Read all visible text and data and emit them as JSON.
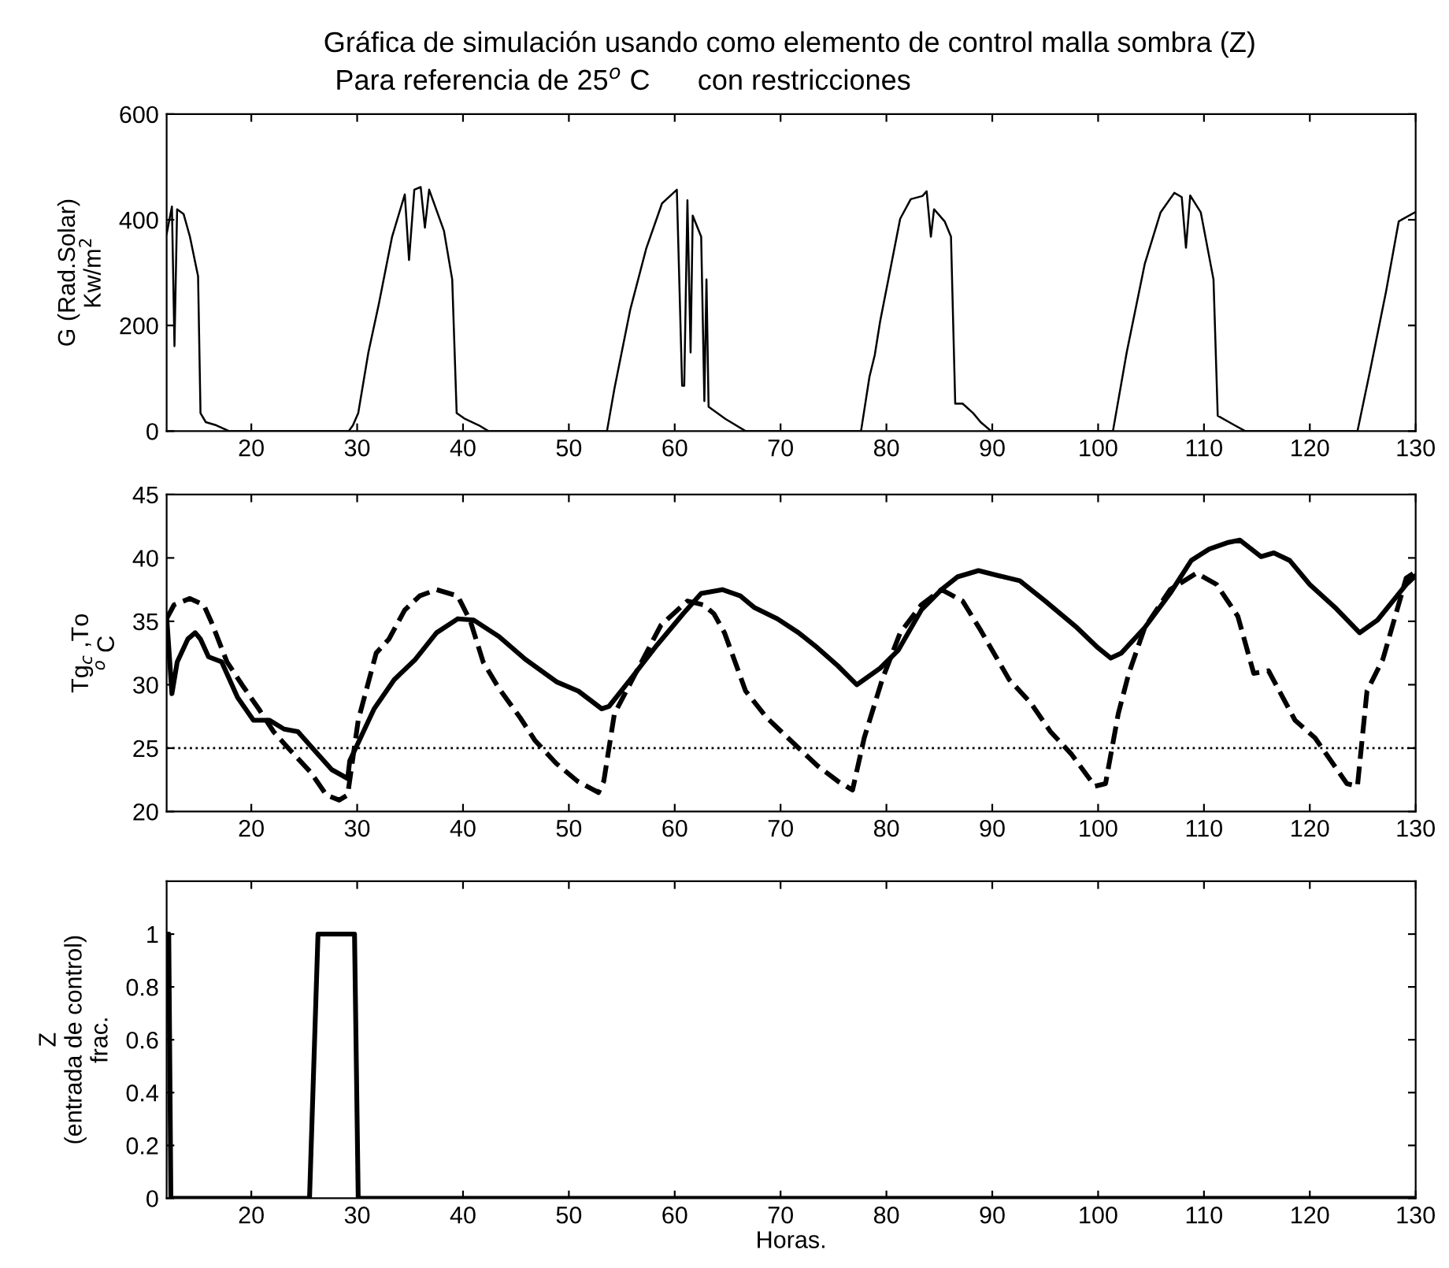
{
  "chart_data": [
    {
      "type": "line",
      "title": "Gráfica de simulación usando como elemento de control malla sombra (Z)",
      "subtitle": "Para referencia de 25$^{o}$ C      con restricciones",
      "ylabel": "G (Rad.Solar)\nKw/m$^{2}$",
      "xlim": [
        12,
        130
      ],
      "xticks": [
        20,
        30,
        40,
        50,
        60,
        70,
        80,
        90,
        100,
        110,
        120,
        130
      ],
      "ylim": [
        0,
        600
      ],
      "yticks": [
        0,
        200,
        400,
        600
      ],
      "grid": false,
      "legend": false,
      "marker": "none",
      "series": [
        {
          "color": "#000000",
          "line_style": "solid",
          "x": [
            12,
            12.5,
            12.74,
            12.99,
            13.6,
            14.2,
            14.97,
            15.2,
            15.7,
            16.7,
            17.9,
            29.2,
            29.6,
            30.1,
            31.06,
            32.05,
            33.3,
            34.5,
            34.9,
            35.4,
            36.0,
            36.4,
            36.8,
            38.2,
            38.98,
            39.4,
            40.2,
            41.5,
            42.4,
            53.6,
            54.3,
            55.8,
            57.3,
            58.8,
            60.2,
            60.7,
            60.9,
            61.2,
            61.5,
            61.7,
            62.5,
            62.8,
            63.0,
            63.2,
            64.8,
            66.7,
            77.6,
            78.4,
            78.9,
            79.4,
            80.3,
            81.3,
            82.3,
            83.4,
            83.8,
            84.2,
            84.5,
            85.5,
            86.1,
            86.5,
            87.2,
            88.2,
            88.9,
            89.9,
            101.4,
            102.7,
            104.4,
            105.9,
            107.2,
            107.9,
            108.3,
            108.7,
            109.7,
            110.9,
            111.3,
            112.9,
            113.9,
            124.5,
            125.7,
            127.2,
            128.4,
            130
          ],
          "values": [
            373,
            425,
            161,
            420,
            411,
            368,
            293,
            34,
            17,
            11,
            0,
            0,
            11,
            34,
            149,
            241,
            368,
            448,
            324,
            457,
            462,
            385,
            457,
            379,
            287,
            34,
            23,
            11,
            0,
            0,
            80,
            230,
            345,
            431,
            457,
            86,
            86,
            437,
            149,
            408,
            368,
            57,
            287,
            46,
            23,
            0,
            0,
            103,
            144,
            207,
            299,
            402,
            439,
            445,
            454,
            368,
            420,
            397,
            368,
            52,
            52,
            34,
            17,
            0,
            0,
            149,
            316,
            414,
            451,
            443,
            347,
            446,
            414,
            287,
            29,
            11,
            0,
            0,
            115,
            264,
            397,
            415
          ]
        }
      ]
    },
    {
      "type": "line",
      "ylabel": "Tg$_{c}$ ,To\n$^{o}$ C",
      "xlim": [
        12,
        130
      ],
      "xticks": [
        20,
        30,
        40,
        50,
        60,
        70,
        80,
        90,
        100,
        110,
        120,
        130
      ],
      "ylim": [
        20,
        45
      ],
      "yticks": [
        20,
        25,
        30,
        35,
        40,
        45
      ],
      "grid": false,
      "legend": false,
      "marker": "none",
      "ref_lines": [
        {
          "axis": "y",
          "value": 25,
          "color": "#000000",
          "line_style": "dotted"
        }
      ],
      "series": [
        {
          "color": "#000000",
          "line_style": "solid",
          "x": [
            12,
            12.5,
            13.0,
            14.0,
            14.7,
            15.2,
            15.96,
            17.2,
            18.7,
            20.2,
            21.7,
            23.1,
            24.4,
            26.1,
            27.6,
            29.1,
            29.3,
            31.6,
            33.5,
            35.5,
            37.5,
            39.5,
            41.0,
            43.4,
            45.9,
            48.9,
            50.9,
            53.1,
            53.8,
            55.8,
            58.3,
            60.8,
            62.5,
            64.5,
            66.2,
            67.5,
            69.7,
            71.7,
            73.5,
            75.4,
            77.2,
            79.4,
            81.1,
            83.3,
            85.2,
            86.7,
            88.7,
            90.6,
            92.6,
            95.0,
            98.0,
            100.0,
            101.2,
            102.2,
            104.4,
            106.8,
            108.8,
            110.5,
            112.2,
            113.4,
            115.4,
            116.6,
            118.1,
            120.0,
            122.5,
            124.7,
            126.4,
            129.1,
            130
          ],
          "values": [
            35.4,
            29.3,
            31.8,
            33.6,
            34.1,
            33.6,
            32.2,
            31.8,
            29.0,
            27.2,
            27.2,
            26.5,
            26.3,
            24.7,
            23.3,
            22.6,
            24.0,
            28.1,
            30.4,
            32.0,
            34.1,
            35.2,
            35.1,
            33.8,
            32.0,
            30.2,
            29.5,
            28.1,
            28.3,
            30.4,
            33.1,
            35.6,
            37.2,
            37.5,
            37.0,
            36.1,
            35.2,
            34.1,
            32.9,
            31.5,
            30.0,
            31.3,
            32.7,
            35.9,
            37.5,
            38.5,
            39.0,
            38.6,
            38.2,
            36.6,
            34.5,
            32.9,
            32.1,
            32.5,
            34.5,
            37.2,
            39.8,
            40.7,
            41.2,
            41.4,
            40.1,
            40.4,
            39.8,
            37.9,
            36.0,
            34.1,
            35.1,
            37.9,
            38.6
          ]
        },
        {
          "color": "#000000",
          "line_style": "dashed",
          "x": [
            12,
            12.7,
            14.2,
            15.5,
            16.2,
            17.7,
            19.2,
            20.7,
            22.1,
            23.6,
            25.6,
            27.1,
            28.3,
            29.1,
            30.1,
            31.8,
            33.0,
            34.5,
            35.9,
            37.5,
            39.5,
            40.7,
            41.9,
            43.4,
            45.4,
            46.8,
            48.8,
            50.8,
            52.8,
            53.3,
            54.3,
            56.3,
            58.7,
            61.2,
            62.7,
            63.7,
            64.7,
            66.7,
            68.7,
            70.7,
            73.5,
            75.4,
            76.8,
            77.9,
            79.6,
            81.3,
            83.3,
            85.2,
            87.2,
            88.9,
            91.6,
            93.6,
            95.5,
            97.5,
            99.7,
            100.7,
            101.9,
            102.9,
            104.4,
            106.8,
            109.3,
            111.2,
            113.2,
            114.7,
            116.1,
            118.6,
            120.5,
            122.0,
            123.5,
            124.5,
            125.4,
            126.9,
            129.1,
            130
          ],
          "values": [
            35.2,
            36.3,
            36.8,
            36.3,
            35.0,
            31.8,
            29.9,
            28.1,
            26.3,
            24.9,
            23.1,
            21.3,
            20.9,
            21.3,
            27.2,
            32.5,
            33.6,
            35.9,
            37.0,
            37.5,
            37.0,
            35.0,
            31.8,
            29.7,
            27.4,
            25.6,
            23.8,
            22.4,
            21.5,
            22.4,
            27.7,
            30.9,
            34.7,
            36.6,
            36.3,
            35.6,
            34.1,
            29.5,
            27.4,
            25.8,
            23.6,
            22.4,
            21.7,
            25.8,
            30.4,
            34.1,
            36.3,
            37.5,
            36.6,
            34.3,
            30.4,
            28.6,
            26.3,
            24.5,
            22.0,
            22.2,
            27.7,
            30.9,
            34.5,
            37.5,
            38.8,
            37.9,
            35.4,
            30.9,
            31.1,
            27.2,
            25.8,
            24.0,
            22.2,
            22.0,
            29.5,
            32.0,
            38.4,
            38.9
          ]
        }
      ]
    },
    {
      "type": "line",
      "ylabel": "Z\n(entrada de control)\nfrac.",
      "xlabel": "Horas.",
      "xlim": [
        12,
        130
      ],
      "xticks": [
        20,
        30,
        40,
        50,
        60,
        70,
        80,
        90,
        100,
        110,
        120,
        130
      ],
      "ylim": [
        0,
        1.2
      ],
      "yticks": [
        0,
        0.2,
        0.4,
        0.6,
        0.8,
        1
      ],
      "grid": false,
      "legend": false,
      "marker": "none",
      "series": [
        {
          "color": "#000000",
          "line_style": "solid",
          "x": [
            12,
            12.2,
            12.4,
            25.5,
            26.3,
            29.75,
            30.1,
            130
          ],
          "values": [
            1,
            1,
            0,
            0,
            1,
            1,
            0,
            0
          ]
        }
      ]
    }
  ]
}
